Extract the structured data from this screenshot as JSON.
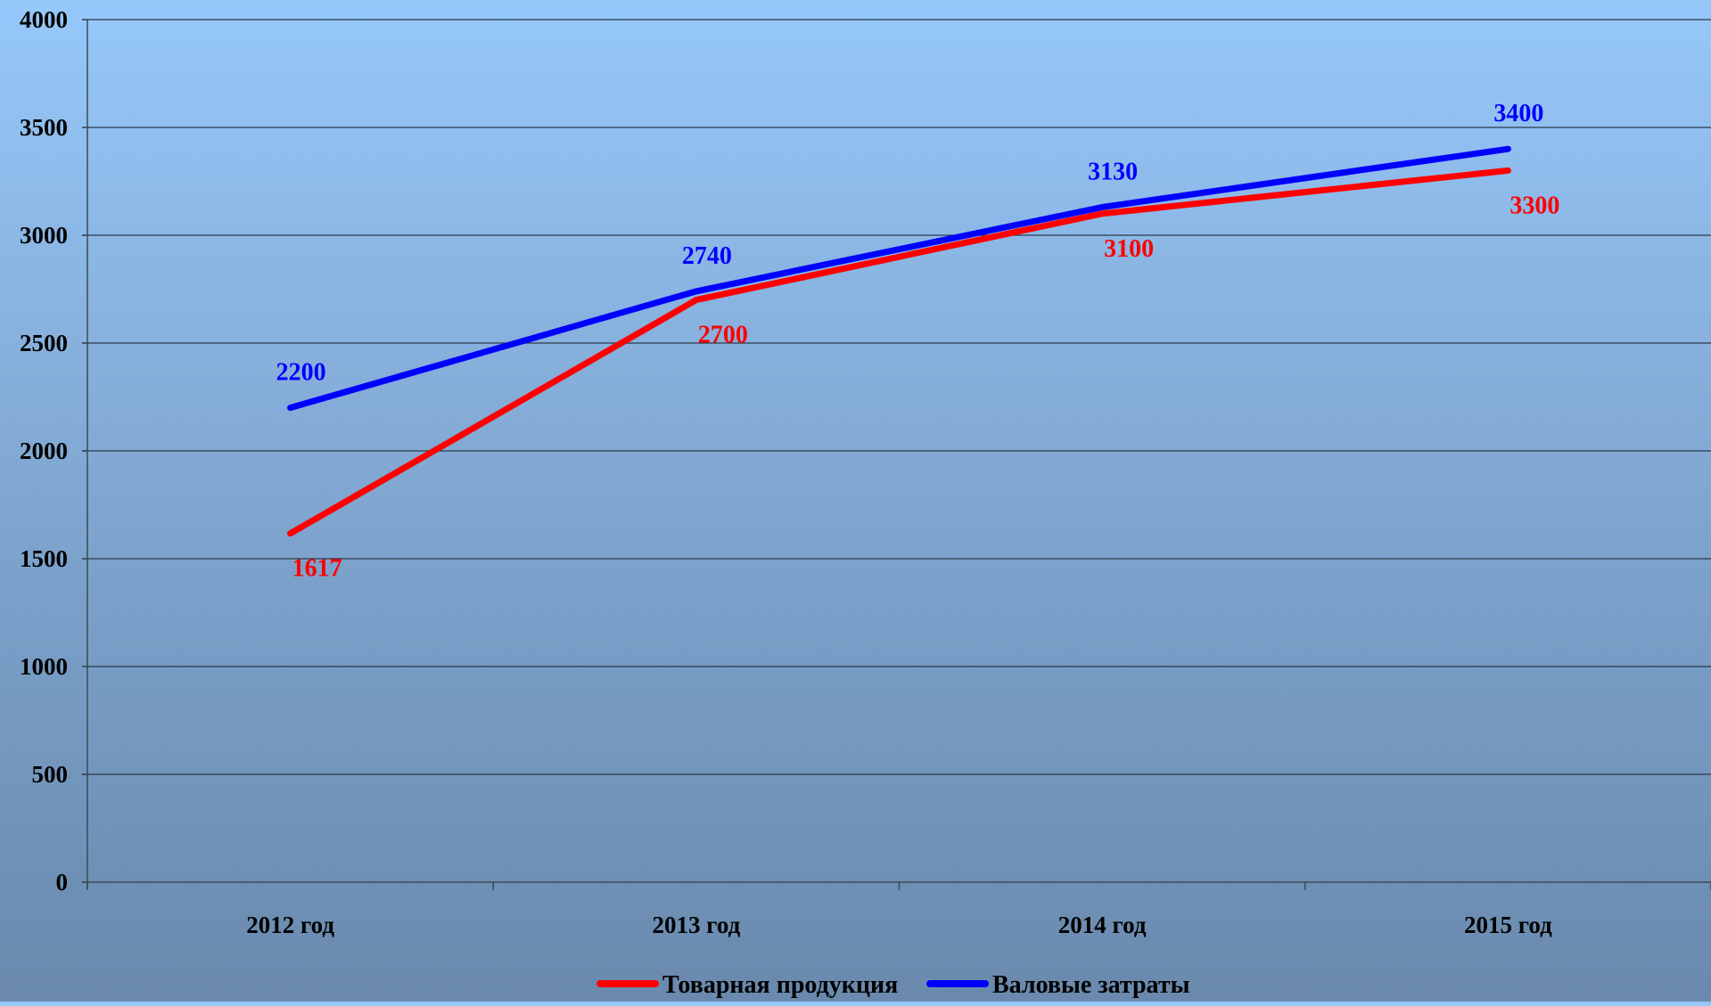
{
  "chart_data": {
    "type": "line",
    "categories": [
      "2012 год",
      "2013 год",
      "2014 год",
      "2015 год"
    ],
    "series": [
      {
        "name": "Товарная продукция",
        "values": [
          1617,
          2700,
          3100,
          3300
        ],
        "color": "#ff0000",
        "label_position": "below"
      },
      {
        "name": "Валовые затраты",
        "values": [
          2200,
          2740,
          3130,
          3400
        ],
        "color": "#0000ff",
        "label_position": "above"
      }
    ],
    "ylim": [
      0,
      4000
    ],
    "yticks": [
      "0",
      "500",
      "1000",
      "1500",
      "2000",
      "2500",
      "3000",
      "3500",
      "4000"
    ],
    "grid": true,
    "legend_position": "bottom-center"
  }
}
